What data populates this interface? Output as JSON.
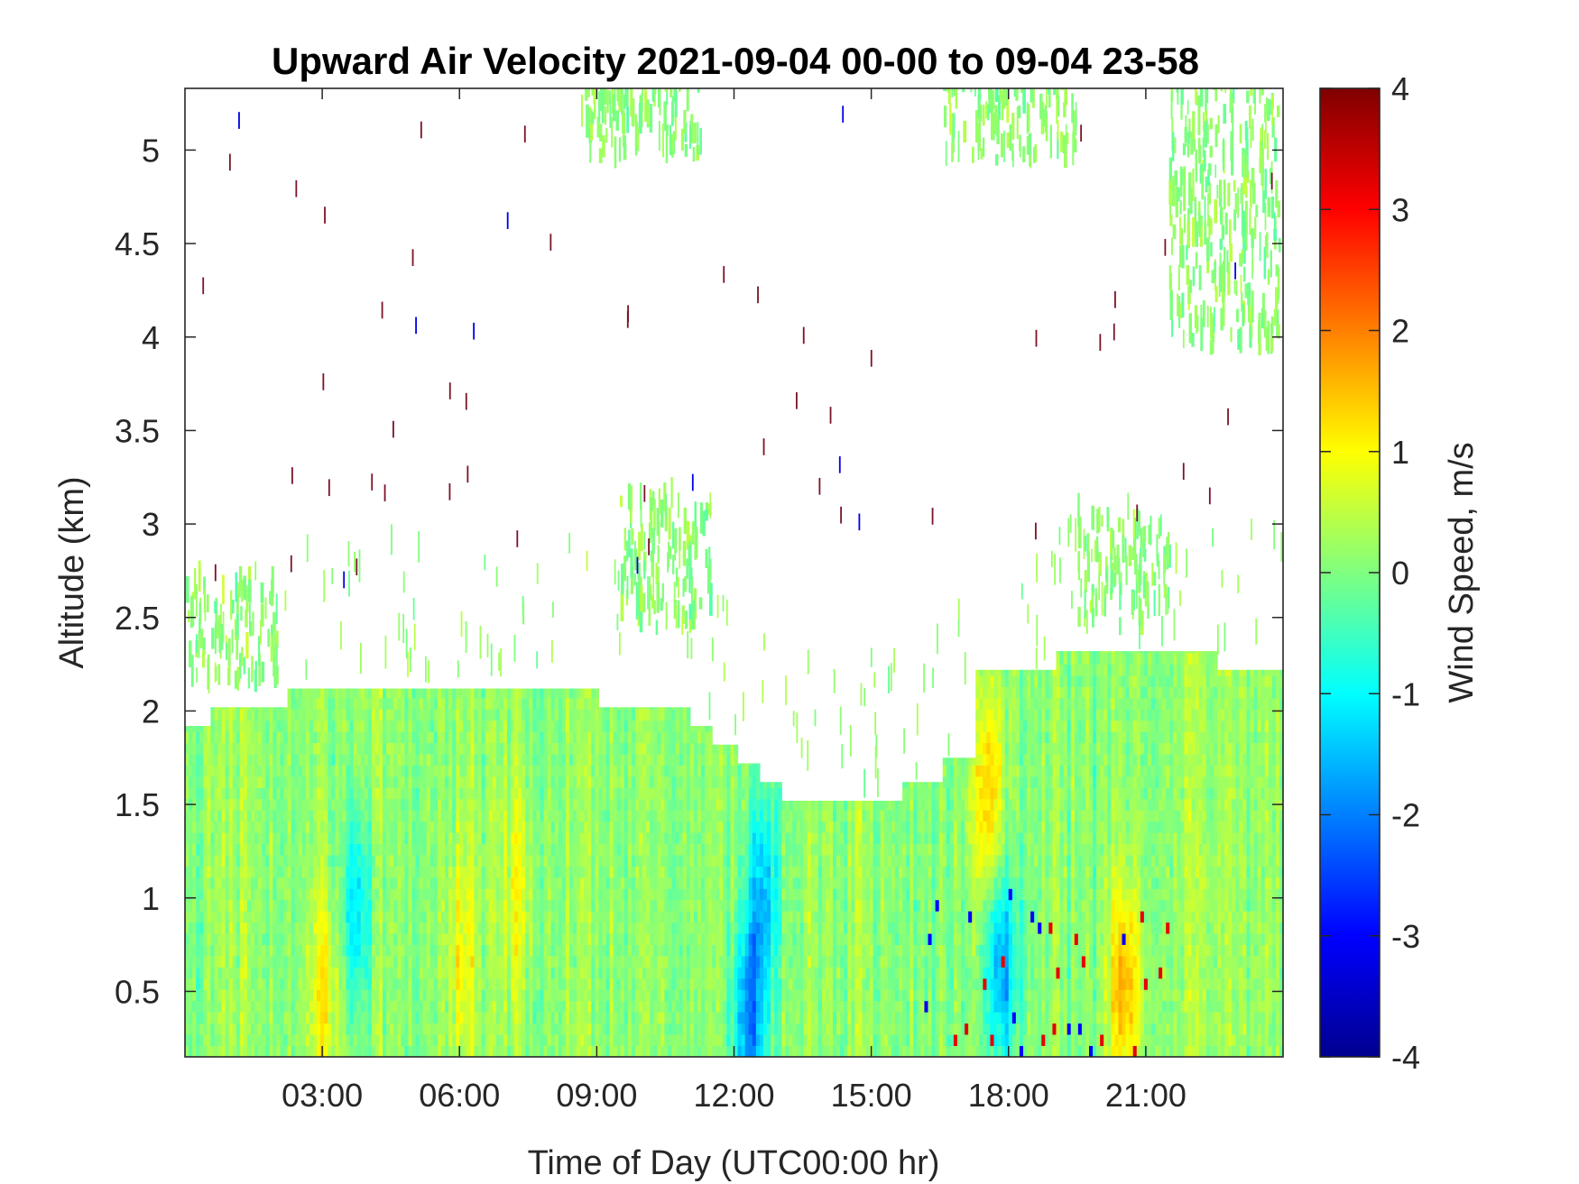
{
  "chart_data": {
    "type": "heatmap",
    "title": "Upward Air Velocity 2021-09-04 00-00 to 09-04 23-58",
    "xlabel": "Time of Day (UTC00:00 hr)",
    "ylabel": "Altitude (km)",
    "colorbar_label": "Wind Speed, m/s",
    "colormap": "jet",
    "xlim": [
      0,
      24
    ],
    "ylim": [
      0.15,
      5.33
    ],
    "clim": [
      -4,
      4
    ],
    "x_ticks": [
      {
        "value": 3,
        "label": "03:00"
      },
      {
        "value": 6,
        "label": "06:00"
      },
      {
        "value": 9,
        "label": "09:00"
      },
      {
        "value": 12,
        "label": "12:00"
      },
      {
        "value": 15,
        "label": "15:00"
      },
      {
        "value": 18,
        "label": "18:00"
      },
      {
        "value": 21,
        "label": "21:00"
      }
    ],
    "y_ticks": [
      {
        "value": 0.5,
        "label": "0.5"
      },
      {
        "value": 1,
        "label": "1"
      },
      {
        "value": 1.5,
        "label": "1.5"
      },
      {
        "value": 2,
        "label": "2"
      },
      {
        "value": 2.5,
        "label": "2.5"
      },
      {
        "value": 3,
        "label": "3"
      },
      {
        "value": 3.5,
        "label": "3.5"
      },
      {
        "value": 4,
        "label": "4"
      },
      {
        "value": 4.5,
        "label": "4.5"
      },
      {
        "value": 5,
        "label": "5"
      }
    ],
    "colorbar_ticks": [
      {
        "value": 4,
        "label": "4"
      },
      {
        "value": 3,
        "label": "3"
      },
      {
        "value": 2,
        "label": "2"
      },
      {
        "value": 1,
        "label": "1"
      },
      {
        "value": 0,
        "label": "0"
      },
      {
        "value": -1,
        "label": "-1"
      },
      {
        "value": -2,
        "label": "-2"
      },
      {
        "value": -3,
        "label": "-3"
      },
      {
        "value": -4,
        "label": "-4"
      }
    ],
    "coverage_top_km": [
      {
        "x": 0.0,
        "y": 1.92
      },
      {
        "x": 0.5,
        "y": 2.02
      },
      {
        "x": 1.8,
        "y": 2.02
      },
      {
        "x": 2.2,
        "y": 2.12
      },
      {
        "x": 8.2,
        "y": 2.12
      },
      {
        "x": 9.0,
        "y": 2.02
      },
      {
        "x": 11.0,
        "y": 1.92
      },
      {
        "x": 11.5,
        "y": 1.82
      },
      {
        "x": 12.0,
        "y": 1.72
      },
      {
        "x": 12.5,
        "y": 1.62
      },
      {
        "x": 13.0,
        "y": 1.52
      },
      {
        "x": 15.2,
        "y": 1.52
      },
      {
        "x": 15.6,
        "y": 1.62
      },
      {
        "x": 16.5,
        "y": 1.75
      },
      {
        "x": 17.2,
        "y": 2.22
      },
      {
        "x": 18.5,
        "y": 2.22
      },
      {
        "x": 19.0,
        "y": 2.32
      },
      {
        "x": 22.0,
        "y": 2.32
      },
      {
        "x": 22.5,
        "y": 2.22
      },
      {
        "x": 24.0,
        "y": 2.22
      }
    ],
    "updraft_bands": [
      {
        "x": 3.0,
        "y": 0.5,
        "value": 0.9
      },
      {
        "x": 6.0,
        "y": 0.7,
        "value": 0.8
      },
      {
        "x": 7.2,
        "y": 1.0,
        "value": 0.7
      },
      {
        "x": 17.5,
        "y": 1.5,
        "value": 1.3
      },
      {
        "x": 20.5,
        "y": 0.5,
        "value": 1.5
      }
    ],
    "downdraft_bands": [
      {
        "x": 3.7,
        "y": 0.9,
        "value": -1.3
      },
      {
        "x": 12.6,
        "y": 1.0,
        "value": -1.5
      },
      {
        "x": 12.3,
        "y": 0.3,
        "value": -2.0
      },
      {
        "x": 17.8,
        "y": 0.6,
        "value": -1.8
      }
    ],
    "upper_clusters": [
      {
        "x_start": 21.5,
        "x_end": 23.9,
        "y_start": 3.9,
        "y_end": 5.33
      },
      {
        "x_start": 8.5,
        "x_end": 11.3,
        "y_start": 4.9,
        "y_end": 5.33
      },
      {
        "x_start": 16.5,
        "x_end": 19.5,
        "y_start": 4.9,
        "y_end": 5.33
      },
      {
        "x_start": 9.5,
        "x_end": 11.5,
        "y_start": 2.4,
        "y_end": 3.1
      },
      {
        "x_start": 19.5,
        "x_end": 21.5,
        "y_start": 2.4,
        "y_end": 3.0
      },
      {
        "x_start": 0.0,
        "x_end": 2.0,
        "y_start": 2.1,
        "y_end": 2.65
      }
    ]
  }
}
